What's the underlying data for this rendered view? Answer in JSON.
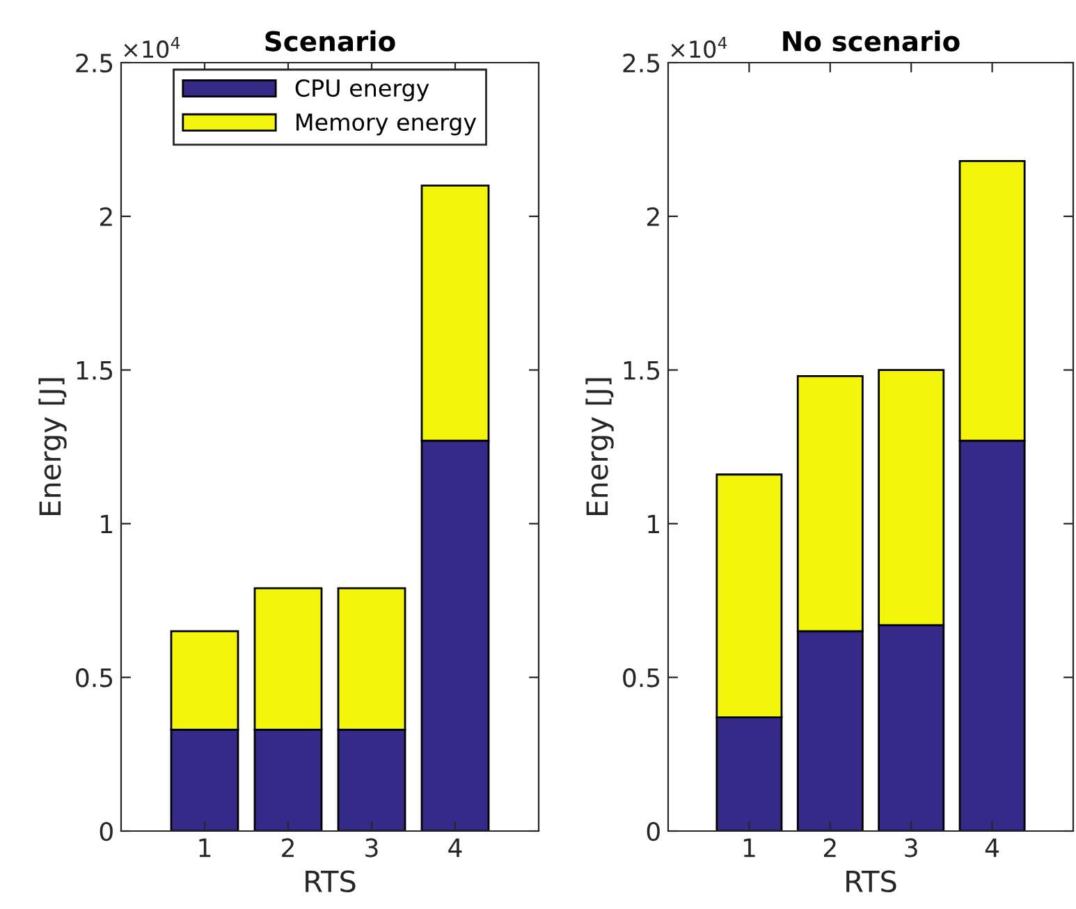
{
  "chart_data": [
    {
      "type": "bar",
      "title": "Scenario",
      "xlabel": "RTS",
      "ylabel": "Energy [J]",
      "categories": [
        "1",
        "2",
        "3",
        "4"
      ],
      "stacked": true,
      "series": [
        {
          "name": "CPU energy",
          "color": "#352a87",
          "values": [
            0.33,
            0.33,
            0.33,
            1.27
          ]
        },
        {
          "name": "Memory energy",
          "color": "#f3f50b",
          "values": [
            0.32,
            0.46,
            0.46,
            0.83
          ]
        }
      ],
      "ylim": [
        0,
        2.5
      ],
      "yticks": [
        0,
        0.5,
        1,
        1.5,
        2,
        2.5
      ],
      "annotations": [
        "×10$^{4}$"
      ],
      "legend": "top"
    },
    {
      "type": "bar",
      "title": "No scenario",
      "xlabel": "RTS",
      "ylabel": "Energy [J]",
      "categories": [
        "1",
        "2",
        "3",
        "4"
      ],
      "stacked": true,
      "series": [
        {
          "color": "#352a87",
          "values": [
            0.37,
            0.65,
            0.67,
            1.27
          ]
        },
        {
          "color": "#f3f50b",
          "values": [
            0.79,
            0.83,
            0.83,
            0.91
          ]
        }
      ],
      "ylim": [
        0,
        2.5
      ],
      "yticks": [
        0,
        0.5,
        1,
        1.5,
        2,
        2.5
      ],
      "annotations": [
        "×10$^{4}$"
      ]
    }
  ]
}
